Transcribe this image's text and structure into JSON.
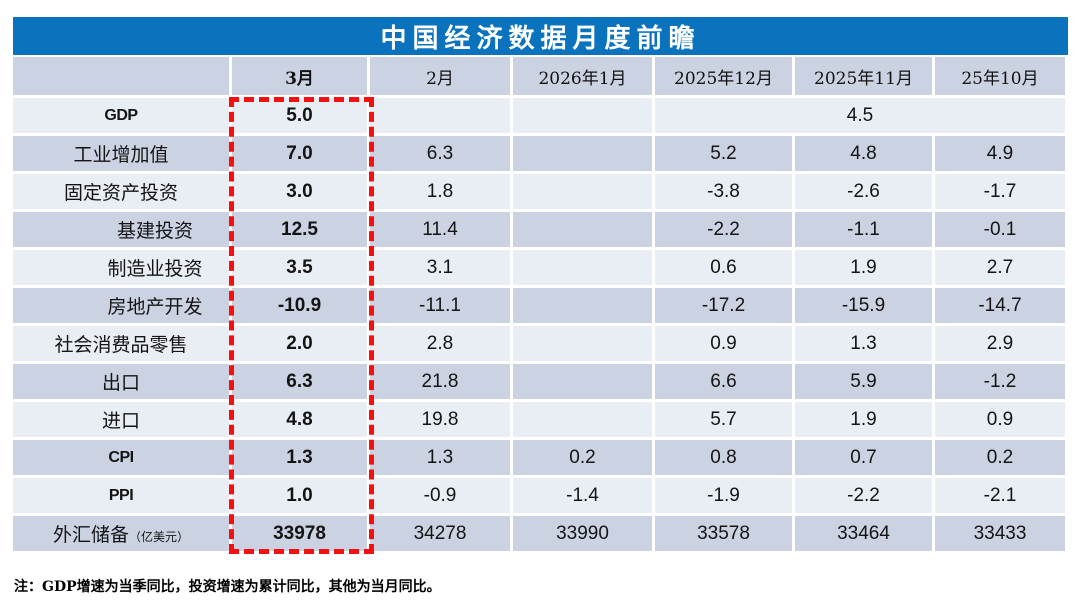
{
  "title": "中国经济数据月度前瞻",
  "note": "注：GDP增速为当季同比，投资增速为累计同比，其他为当月同比。",
  "colors": {
    "title_bar_blue": "#0b73be",
    "row_dark": "#cbd3e3",
    "row_light": "#e9edf4",
    "highlight_red": "#ee1111",
    "dashed_box_red": "#f50f0f"
  },
  "table": {
    "columns": [
      "",
      "3月",
      "2月",
      "2026年1月",
      "2025年12月",
      "2025年11月",
      "25年10月"
    ],
    "highlight_column": "3月",
    "rows": [
      {
        "label": "GDP",
        "code": true,
        "cells": [
          {
            "v": "5.0"
          },
          {
            "v": ""
          },
          {
            "v": ""
          },
          {
            "v": "4.5",
            "span": 3
          }
        ]
      },
      {
        "label": "工业增加值",
        "cells": [
          {
            "v": "7.0"
          },
          {
            "v": "6.3"
          },
          {
            "v": ""
          },
          {
            "v": "5.2"
          },
          {
            "v": "4.8"
          },
          {
            "v": "4.9"
          }
        ]
      },
      {
        "label": "固定资产投资",
        "cells": [
          {
            "v": "3.0"
          },
          {
            "v": "1.8"
          },
          {
            "v": ""
          },
          {
            "v": "-3.8"
          },
          {
            "v": "-2.6"
          },
          {
            "v": "-1.7"
          }
        ]
      },
      {
        "label": "基建投资",
        "indent": true,
        "cells": [
          {
            "v": "12.5"
          },
          {
            "v": "11.4"
          },
          {
            "v": ""
          },
          {
            "v": "-2.2"
          },
          {
            "v": "-1.1"
          },
          {
            "v": "-0.1"
          }
        ]
      },
      {
        "label": "制造业投资",
        "indent": true,
        "cells": [
          {
            "v": "3.5"
          },
          {
            "v": "3.1"
          },
          {
            "v": ""
          },
          {
            "v": "0.6"
          },
          {
            "v": "1.9"
          },
          {
            "v": "2.7"
          }
        ]
      },
      {
        "label": "房地产开发",
        "indent": true,
        "cells": [
          {
            "v": "-10.9"
          },
          {
            "v": "-11.1"
          },
          {
            "v": ""
          },
          {
            "v": "-17.2"
          },
          {
            "v": "-15.9"
          },
          {
            "v": "-14.7"
          }
        ]
      },
      {
        "label": "社会消费品零售",
        "cells": [
          {
            "v": "2.0"
          },
          {
            "v": "2.8"
          },
          {
            "v": ""
          },
          {
            "v": "0.9"
          },
          {
            "v": "1.3"
          },
          {
            "v": "2.9"
          }
        ]
      },
      {
        "label": "出口",
        "cells": [
          {
            "v": "6.3"
          },
          {
            "v": "21.8"
          },
          {
            "v": ""
          },
          {
            "v": "6.6"
          },
          {
            "v": "5.9"
          },
          {
            "v": "-1.2"
          }
        ]
      },
      {
        "label": "进口",
        "cells": [
          {
            "v": "4.8"
          },
          {
            "v": "19.8"
          },
          {
            "v": ""
          },
          {
            "v": "5.7"
          },
          {
            "v": "1.9"
          },
          {
            "v": "0.9"
          }
        ]
      },
      {
        "label": "CPI",
        "code": true,
        "cells": [
          {
            "v": "1.3"
          },
          {
            "v": "1.3"
          },
          {
            "v": "0.2"
          },
          {
            "v": "0.8"
          },
          {
            "v": "0.7"
          },
          {
            "v": "0.2"
          }
        ]
      },
      {
        "label": "PPI",
        "code": true,
        "cells": [
          {
            "v": "1.0"
          },
          {
            "v": "-0.9"
          },
          {
            "v": "-1.4"
          },
          {
            "v": "-1.9"
          },
          {
            "v": "-2.2"
          },
          {
            "v": "-2.1"
          }
        ]
      },
      {
        "label": "外汇储备",
        "unit": "（亿美元）",
        "cells": [
          {
            "v": "33978"
          },
          {
            "v": "34278"
          },
          {
            "v": "33990"
          },
          {
            "v": "33578"
          },
          {
            "v": "33464"
          },
          {
            "v": "33433"
          }
        ]
      }
    ]
  }
}
